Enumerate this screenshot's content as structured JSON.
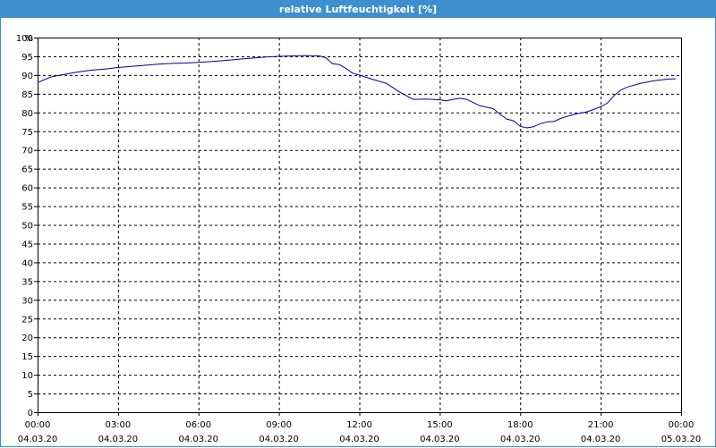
{
  "window": {
    "title": "relative Luftfeuchtigkeit [%]"
  },
  "colors": {
    "title_bar": "#3d8fcf",
    "series_line": "#0000a0",
    "grid": "#000000",
    "background": "#ffffff"
  },
  "chart_data": {
    "type": "line",
    "title": "relative Luftfeuchtigkeit [%]",
    "ylabel": "%",
    "ylim": [
      0,
      100
    ],
    "y_ticks": [
      0,
      5,
      10,
      15,
      20,
      25,
      30,
      35,
      40,
      45,
      50,
      55,
      60,
      65,
      70,
      75,
      80,
      85,
      90,
      95,
      100
    ],
    "xlim": [
      0,
      24
    ],
    "x_ticks": [
      {
        "hour": 0,
        "time": "00:00",
        "date": "04.03.20"
      },
      {
        "hour": 3,
        "time": "03:00",
        "date": "04.03.20"
      },
      {
        "hour": 6,
        "time": "06:00",
        "date": "04.03.20"
      },
      {
        "hour": 9,
        "time": "09:00",
        "date": "04.03.20"
      },
      {
        "hour": 12,
        "time": "12:00",
        "date": "04.03.20"
      },
      {
        "hour": 15,
        "time": "15:00",
        "date": "04.03.20"
      },
      {
        "hour": 18,
        "time": "18:00",
        "date": "04.03.20"
      },
      {
        "hour": 21,
        "time": "21:00",
        "date": "04.03.20"
      },
      {
        "hour": 24,
        "time": "00:00",
        "date": "05.03.20"
      }
    ],
    "grid": true,
    "series": [
      {
        "x": [
          0,
          0.5,
          1,
          1.5,
          2,
          2.5,
          3,
          3.5,
          4,
          4.5,
          5,
          5.5,
          6,
          6.5,
          7,
          7.5,
          8,
          8.5,
          9,
          9.5,
          10,
          10.5,
          10.75,
          11,
          11.25,
          11.5,
          11.75,
          12,
          12.5,
          13,
          13.5,
          14,
          14.5,
          15,
          15.25,
          15.5,
          15.75,
          16,
          16.5,
          17,
          17.25,
          17.5,
          17.75,
          18,
          18.25,
          18.5,
          18.75,
          19,
          19.25,
          19.5,
          20,
          20.5,
          21,
          21.25,
          21.5,
          21.75,
          22,
          22.5,
          23,
          23.5,
          23.8
        ],
        "y": [
          88,
          89.5,
          90.2,
          90.8,
          91.3,
          91.6,
          92,
          92.3,
          92.6,
          92.9,
          93.1,
          93.2,
          93.4,
          93.6,
          93.9,
          94.2,
          94.5,
          94.8,
          95,
          95.1,
          95.2,
          95.1,
          94.6,
          93,
          92.8,
          91.8,
          90.5,
          90,
          88.8,
          87.8,
          85.5,
          83.5,
          83.6,
          83.4,
          83.1,
          83.5,
          83.8,
          83.5,
          81.8,
          81,
          79.5,
          78.2,
          77.8,
          76.3,
          75.9,
          76.2,
          77,
          77.5,
          77.6,
          78.4,
          79.5,
          80.2,
          81.5,
          82.5,
          84.5,
          86,
          86.8,
          87.8,
          88.5,
          88.9,
          89
        ]
      }
    ]
  }
}
